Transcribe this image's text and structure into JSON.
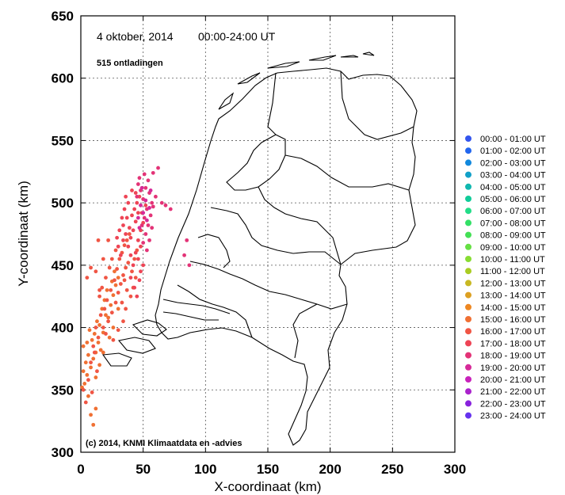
{
  "header": {
    "date": "4 oktober, 2014",
    "period": "00:00-24:00 UT",
    "count": "515 ontladingen"
  },
  "credit": "(c) 2014, KNMI Klimaatdata en -advies",
  "chart_data": {
    "type": "scatter",
    "xlabel": "X-coordinaat (km)",
    "ylabel": "Y-coordinaat (km)",
    "xlim": [
      0,
      300
    ],
    "ylim": [
      300,
      650
    ],
    "x_ticks": [
      "0",
      "50",
      "100",
      "150",
      "200",
      "250",
      "300"
    ],
    "y_ticks": [
      "300",
      "350",
      "400",
      "450",
      "500",
      "550",
      "600",
      "650"
    ],
    "grid": true,
    "legend_position": "right",
    "legend": [
      {
        "label": "00:00 - 01:00 UT",
        "color": "#3355ee"
      },
      {
        "label": "01:00 - 02:00 UT",
        "color": "#2266ee"
      },
      {
        "label": "02:00 - 03:00 UT",
        "color": "#1188dd"
      },
      {
        "label": "03:00 - 04:00 UT",
        "color": "#11a0c8"
      },
      {
        "label": "04:00 - 05:00 UT",
        "color": "#11b8b0"
      },
      {
        "label": "05:00 - 06:00 UT",
        "color": "#11cc99"
      },
      {
        "label": "06:00 - 07:00 UT",
        "color": "#22dd88"
      },
      {
        "label": "07:00 - 08:00 UT",
        "color": "#33e066"
      },
      {
        "label": "08:00 - 09:00 UT",
        "color": "#44e055"
      },
      {
        "label": "09:00 - 10:00 UT",
        "color": "#66e044"
      },
      {
        "label": "10:00 - 11:00 UT",
        "color": "#88dd33"
      },
      {
        "label": "11:00 - 12:00 UT",
        "color": "#aacc22"
      },
      {
        "label": "12:00 - 13:00 UT",
        "color": "#c8b822"
      },
      {
        "label": "13:00 - 14:00 UT",
        "color": "#dda022"
      },
      {
        "label": "14:00 - 15:00 UT",
        "color": "#ee8822"
      },
      {
        "label": "15:00 - 16:00 UT",
        "color": "#f07033"
      },
      {
        "label": "16:00 - 17:00 UT",
        "color": "#f05544"
      },
      {
        "label": "17:00 - 18:00 UT",
        "color": "#ee4455"
      },
      {
        "label": "18:00 - 19:00 UT",
        "color": "#e33377"
      },
      {
        "label": "19:00 - 20:00 UT",
        "color": "#d62a99"
      },
      {
        "label": "20:00 - 21:00 UT",
        "color": "#c822bb"
      },
      {
        "label": "21:00 - 22:00 UT",
        "color": "#aa22cc"
      },
      {
        "label": "22:00 - 23:00 UT",
        "color": "#8822dd"
      },
      {
        "label": "23:00 - 24:00 UT",
        "color": "#6633ee"
      }
    ],
    "series": [
      {
        "hour_index": 15,
        "points": [
          [
            3,
            355
          ],
          [
            5,
            362
          ],
          [
            8,
            368
          ],
          [
            10,
            375
          ],
          [
            12,
            380
          ],
          [
            6,
            378
          ],
          [
            2,
            385
          ],
          [
            9,
            390
          ],
          [
            14,
            388
          ],
          [
            11,
            395
          ],
          [
            7,
            398
          ],
          [
            15,
            402
          ],
          [
            18,
            396
          ],
          [
            13,
            405
          ],
          [
            20,
            410
          ],
          [
            17,
            415
          ],
          [
            22,
            408
          ],
          [
            24,
            418
          ],
          [
            19,
            422
          ],
          [
            26,
            426
          ],
          [
            21,
            430
          ],
          [
            28,
            434
          ],
          [
            25,
            437
          ],
          [
            30,
            440
          ],
          [
            27,
            445
          ],
          [
            4,
            372
          ],
          [
            1,
            352
          ],
          [
            6,
            345
          ],
          [
            8,
            330
          ],
          [
            10,
            322
          ],
          [
            12,
            335
          ],
          [
            16,
            382
          ],
          [
            23,
            392
          ],
          [
            2,
            365
          ],
          [
            5,
            388
          ],
          [
            30,
            415
          ],
          [
            26,
            400
          ],
          [
            12,
            360
          ],
          [
            15,
            370
          ],
          [
            18,
            380
          ]
        ]
      },
      {
        "hour_index": 16,
        "points": [
          [
            10,
            385
          ],
          [
            14,
            392
          ],
          [
            18,
            400
          ],
          [
            22,
            405
          ],
          [
            25,
            412
          ],
          [
            28,
            420
          ],
          [
            30,
            428
          ],
          [
            32,
            435
          ],
          [
            34,
            442
          ],
          [
            36,
            448
          ],
          [
            38,
            452
          ],
          [
            33,
            460
          ],
          [
            35,
            466
          ],
          [
            37,
            470
          ],
          [
            39,
            475
          ],
          [
            31,
            455
          ],
          [
            29,
            447
          ],
          [
            27,
            438
          ],
          [
            24,
            430
          ],
          [
            21,
            422
          ],
          [
            16,
            410
          ],
          [
            12,
            400
          ],
          [
            20,
            395
          ],
          [
            26,
            390
          ],
          [
            30,
            398
          ],
          [
            34,
            405
          ],
          [
            36,
            415
          ],
          [
            40,
            425
          ],
          [
            42,
            432
          ],
          [
            44,
            440
          ],
          [
            23,
            448
          ],
          [
            20,
            440
          ],
          [
            17,
            432
          ],
          [
            15,
            425
          ],
          [
            19,
            415
          ],
          [
            11,
            380
          ],
          [
            8,
            372
          ],
          [
            13,
            365
          ],
          [
            6,
            358
          ],
          [
            4,
            340
          ],
          [
            2,
            350
          ],
          [
            9,
            348
          ],
          [
            33,
            420
          ],
          [
            37,
            430
          ],
          [
            41,
            445
          ],
          [
            43,
            455
          ],
          [
            45,
            462
          ],
          [
            35,
            438
          ],
          [
            28,
            462
          ],
          [
            25,
            455
          ],
          [
            22,
            470
          ],
          [
            8,
            448
          ],
          [
            5,
            440
          ],
          [
            12,
            445
          ],
          [
            15,
            430
          ],
          [
            18,
            455
          ],
          [
            14,
            470
          ]
        ]
      },
      {
        "hour_index": 17,
        "points": [
          [
            38,
            465
          ],
          [
            40,
            472
          ],
          [
            42,
            478
          ],
          [
            44,
            485
          ],
          [
            41,
            490
          ],
          [
            43,
            495
          ],
          [
            45,
            500
          ],
          [
            47,
            505
          ],
          [
            39,
            480
          ],
          [
            36,
            475
          ],
          [
            34,
            482
          ],
          [
            37,
            488
          ],
          [
            46,
            470
          ],
          [
            48,
            478
          ],
          [
            50,
            484
          ],
          [
            49,
            492
          ],
          [
            52,
            498
          ],
          [
            44,
            460
          ],
          [
            42,
            450
          ],
          [
            46,
            455
          ],
          [
            48,
            445
          ],
          [
            40,
            440
          ],
          [
            43,
            432
          ],
          [
            45,
            425
          ],
          [
            47,
            438
          ],
          [
            50,
            450
          ],
          [
            35,
            495
          ],
          [
            33,
            488
          ],
          [
            31,
            478
          ],
          [
            29,
            472
          ],
          [
            38,
            500
          ],
          [
            36,
            505
          ],
          [
            41,
            510
          ],
          [
            44,
            508
          ],
          [
            34,
            470
          ],
          [
            30,
            465
          ],
          [
            32,
            458
          ],
          [
            46,
            492
          ],
          [
            40,
            458
          ],
          [
            48,
            465
          ]
        ]
      },
      {
        "hour_index": 18,
        "points": [
          [
            45,
            505
          ],
          [
            48,
            510
          ],
          [
            50,
            503
          ],
          [
            52,
            512
          ],
          [
            54,
            518
          ],
          [
            47,
            520
          ],
          [
            55,
            508
          ],
          [
            57,
            500
          ],
          [
            53,
            495
          ],
          [
            56,
            490
          ],
          [
            58,
            497
          ],
          [
            51,
            488
          ],
          [
            49,
            482
          ],
          [
            52,
            475
          ],
          [
            54,
            482
          ],
          [
            60,
            505
          ],
          [
            62,
            528
          ],
          [
            58,
            524
          ],
          [
            51,
            523
          ],
          [
            55,
            470
          ],
          [
            53,
            462
          ],
          [
            57,
            480
          ],
          [
            65,
            500
          ],
          [
            68,
            498
          ],
          [
            72,
            495
          ],
          [
            85,
            470
          ],
          [
            83,
            458
          ],
          [
            87,
            450
          ],
          [
            50,
            468
          ],
          [
            46,
            515
          ]
        ]
      },
      {
        "hour_index": 19,
        "points": [
          [
            48,
            498
          ],
          [
            52,
            502
          ],
          [
            55,
            496
          ],
          [
            50,
            492
          ],
          [
            53,
            486
          ],
          [
            46,
            488
          ],
          [
            56,
            510
          ],
          [
            49,
            512
          ],
          [
            47,
            480
          ]
        ]
      }
    ]
  }
}
